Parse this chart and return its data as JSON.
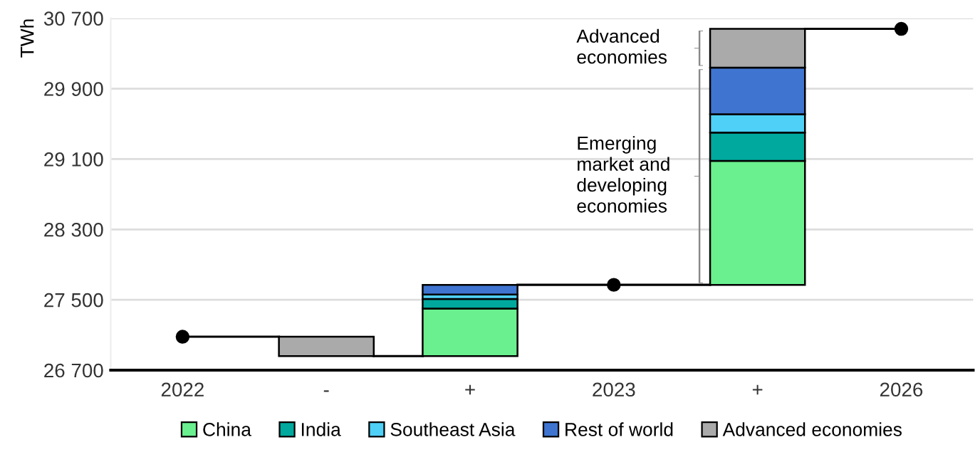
{
  "chart_data": {
    "type": "bar",
    "ylabel": "TWh",
    "categories": [
      "2022",
      "-",
      "+",
      "2023",
      "+",
      "2026"
    ],
    "series": [
      {
        "name": "China",
        "color": "#6af08f",
        "base": [
          null,
          null,
          26860,
          null,
          27670,
          null
        ],
        "values": [
          null,
          null,
          540,
          null,
          1410,
          null
        ]
      },
      {
        "name": "India",
        "color": "#00a99d",
        "base": [
          null,
          null,
          27400,
          null,
          29080,
          null
        ],
        "values": [
          null,
          null,
          110,
          null,
          320,
          null
        ]
      },
      {
        "name": "Southeast Asia",
        "color": "#4fd0f7",
        "base": [
          null,
          null,
          27510,
          null,
          29400,
          null
        ],
        "values": [
          null,
          null,
          50,
          null,
          210,
          null
        ]
      },
      {
        "name": "Rest of world",
        "color": "#3f75d0",
        "base": [
          null,
          null,
          27560,
          null,
          29610,
          null
        ],
        "values": [
          null,
          null,
          110,
          null,
          530,
          null
        ]
      },
      {
        "name": "Advanced economies",
        "color": "#aaaaaa",
        "base": [
          null,
          27080,
          null,
          null,
          30140,
          null
        ],
        "values": [
          null,
          -220,
          null,
          null,
          440,
          null
        ]
      },
      {
        "type": "scatter",
        "color": "#000000",
        "marker": "circle",
        "values": [
          27080,
          null,
          null,
          27670,
          null,
          30580
        ]
      }
    ],
    "ylim": [
      26700,
      30700
    ],
    "yticks": [
      {
        "value": 26700,
        "label": "26 700"
      },
      {
        "value": 27500,
        "label": "27 500"
      },
      {
        "value": 28300,
        "label": "28 300"
      },
      {
        "value": 29100,
        "label": "29 100"
      },
      {
        "value": 29900,
        "label": "29 900"
      },
      {
        "value": 30700,
        "label": "30 700"
      }
    ],
    "grid": "y",
    "legend": "bottom",
    "annotations": [
      "Advanced economies",
      "Emerging market and developing economies"
    ]
  }
}
